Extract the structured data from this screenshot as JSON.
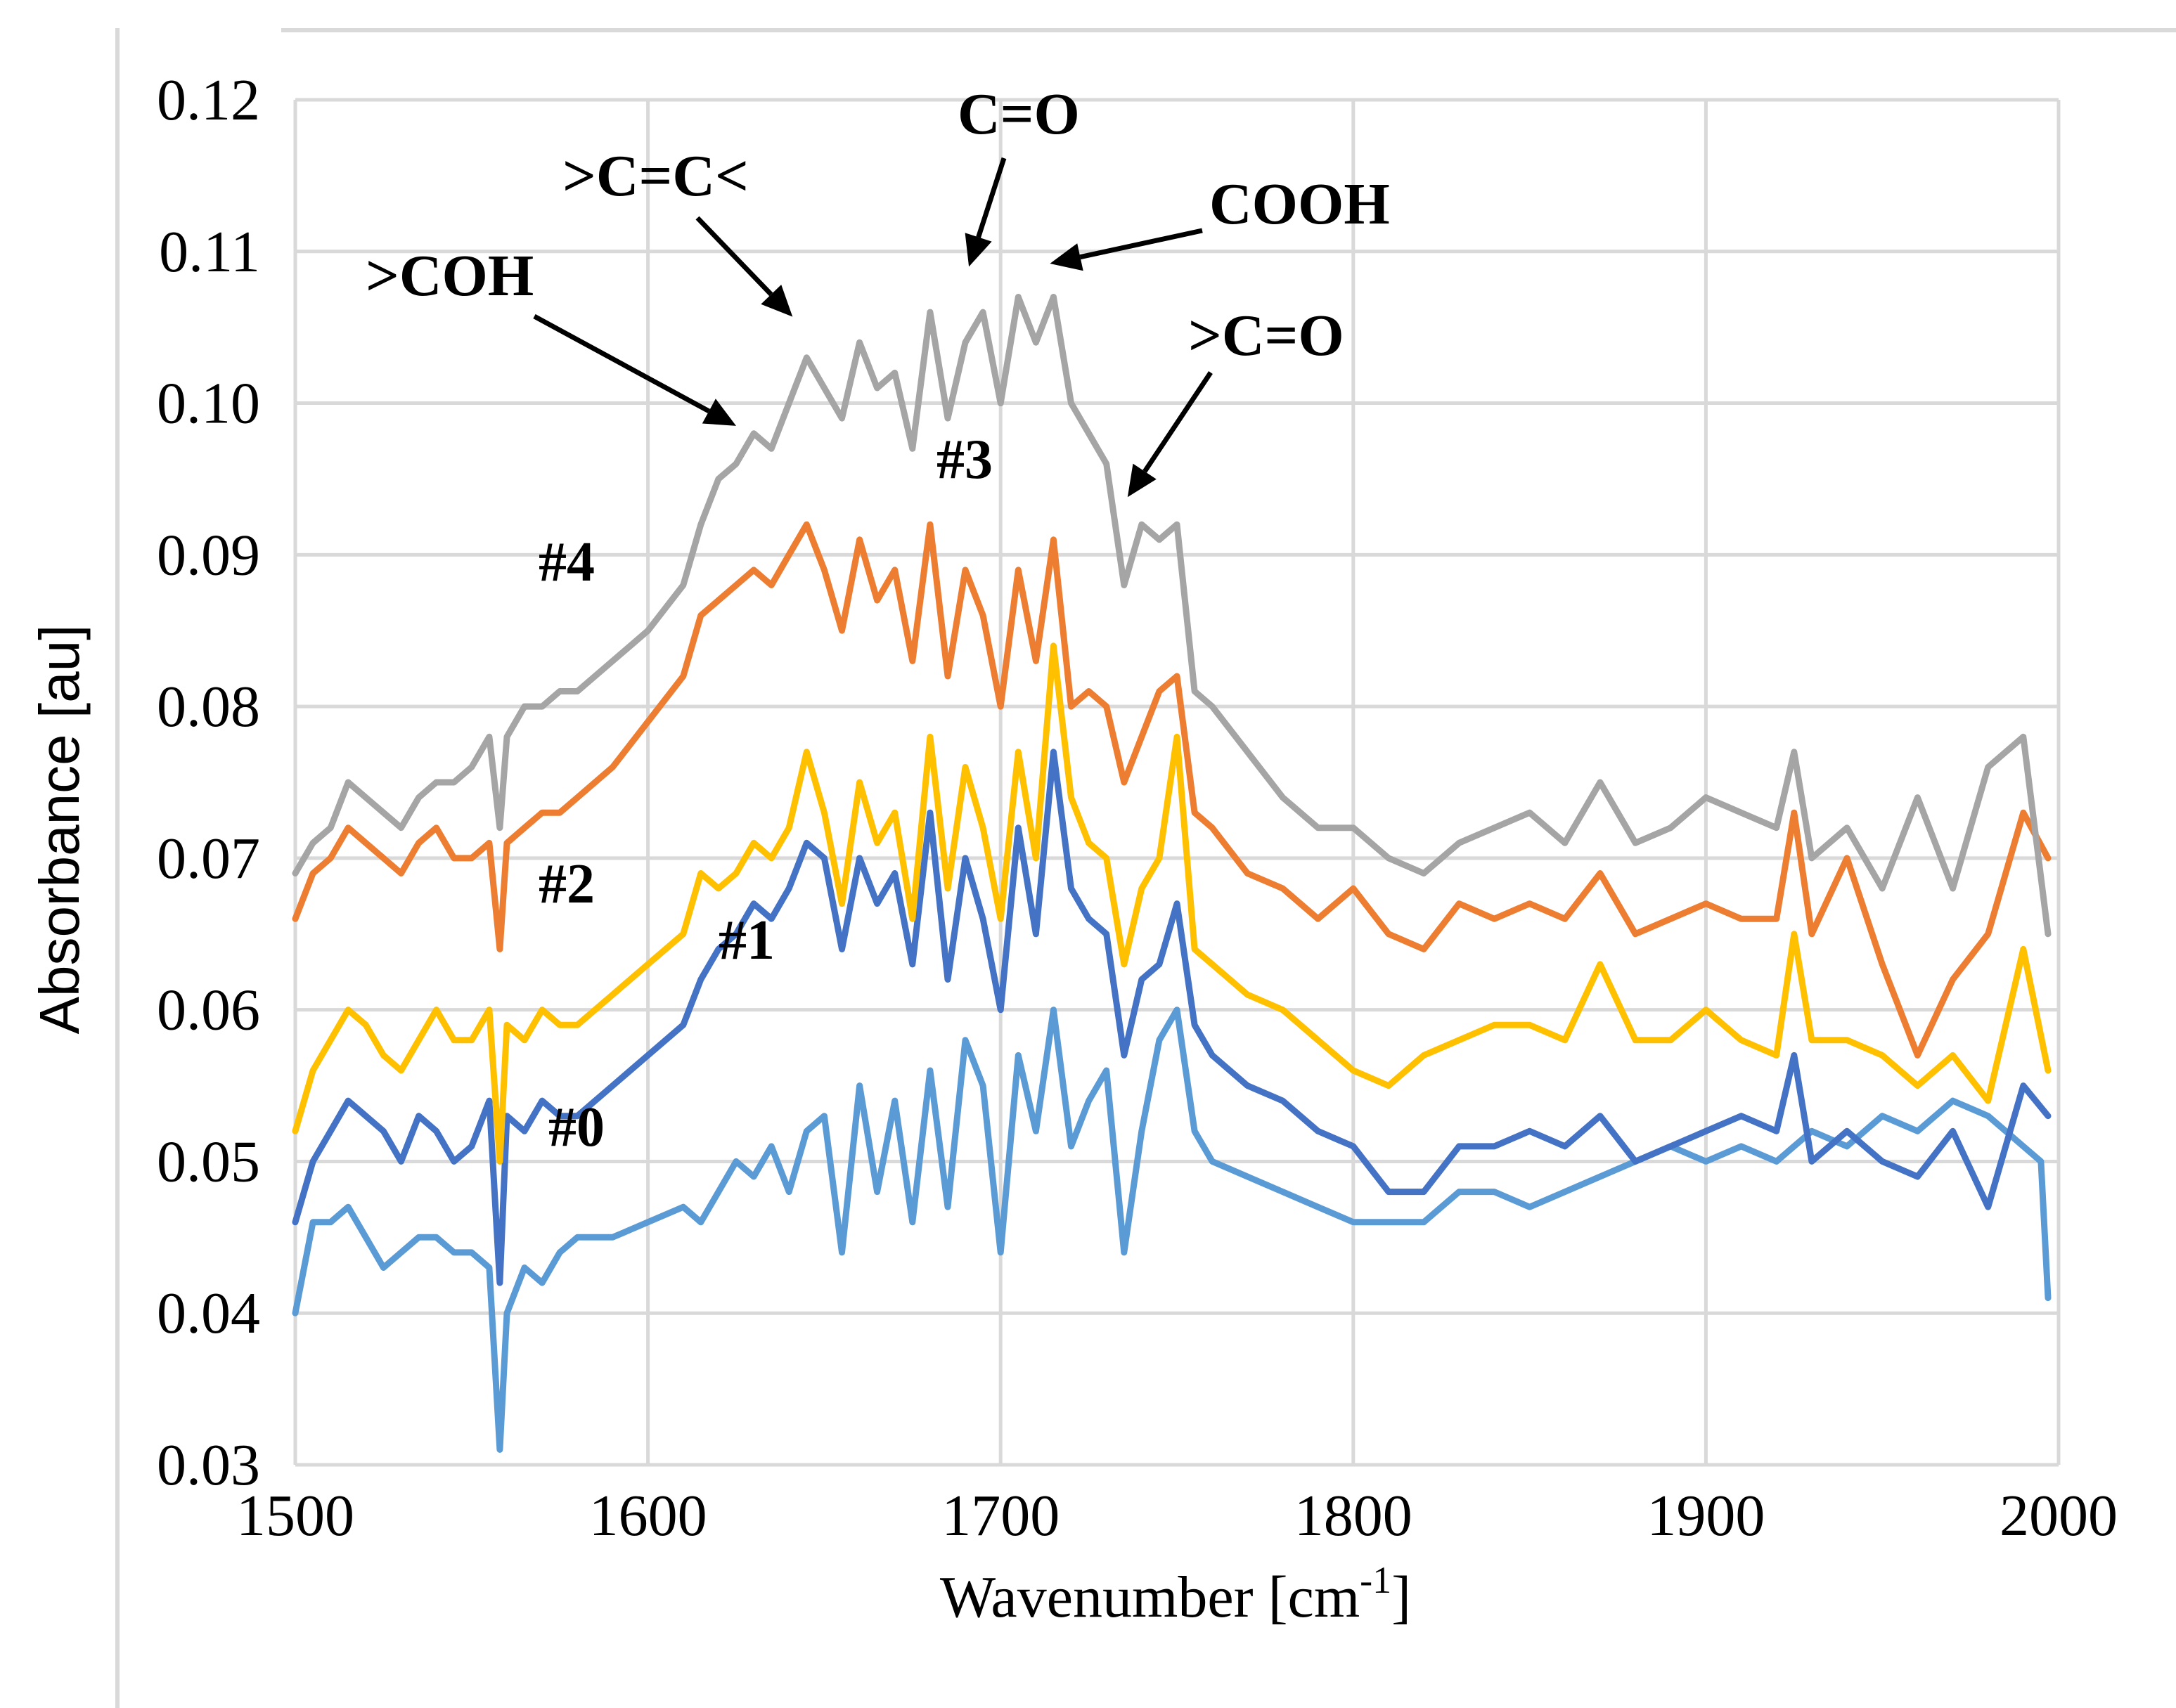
{
  "chart_data": {
    "type": "line",
    "title": "",
    "xlabel": "Wavenumber [cm",
    "xlabel_sup": "-1",
    "xlabel_end": "]",
    "ylabel": "Absorbance [au]",
    "xlim": [
      1500,
      2000
    ],
    "ylim": [
      0.03,
      0.12
    ],
    "grid": true,
    "x_ticks": [
      1500,
      1600,
      1700,
      1800,
      1900,
      2000
    ],
    "x_tick_labels": [
      "1500",
      "1600",
      "1700",
      "1800",
      "1900",
      "2000"
    ],
    "y_ticks": [
      0.03,
      0.04,
      0.05,
      0.06,
      0.07,
      0.08,
      0.09,
      0.1,
      0.11,
      0.12
    ],
    "y_tick_labels": [
      "0.03",
      "0.04",
      "0.05",
      "0.06",
      "0.07",
      "0.08",
      "0.09",
      "0.10",
      "0.11",
      "0.12"
    ],
    "series": [
      {
        "name": "#0",
        "color": "#5B9BD5",
        "x": [
          1500,
          1505,
          1510,
          1515,
          1520,
          1525,
          1530,
          1535,
          1540,
          1545,
          1550,
          1555,
          1558,
          1560,
          1565,
          1570,
          1575,
          1580,
          1590,
          1600,
          1610,
          1615,
          1620,
          1625,
          1630,
          1635,
          1640,
          1645,
          1650,
          1655,
          1660,
          1665,
          1670,
          1675,
          1680,
          1685,
          1690,
          1695,
          1700,
          1705,
          1710,
          1715,
          1720,
          1725,
          1730,
          1735,
          1740,
          1745,
          1750,
          1755,
          1760,
          1770,
          1780,
          1790,
          1800,
          1810,
          1820,
          1830,
          1840,
          1850,
          1860,
          1870,
          1880,
          1890,
          1900,
          1910,
          1920,
          1930,
          1940,
          1950,
          1960,
          1970,
          1980,
          1990,
          1995,
          1997
        ],
        "values": [
          0.04,
          0.046,
          0.046,
          0.047,
          0.045,
          0.043,
          0.044,
          0.045,
          0.045,
          0.044,
          0.044,
          0.043,
          0.031,
          0.04,
          0.043,
          0.042,
          0.044,
          0.045,
          0.045,
          0.046,
          0.047,
          0.046,
          0.048,
          0.05,
          0.049,
          0.051,
          0.048,
          0.052,
          0.053,
          0.044,
          0.055,
          0.048,
          0.054,
          0.046,
          0.056,
          0.047,
          0.058,
          0.055,
          0.044,
          0.057,
          0.052,
          0.06,
          0.051,
          0.054,
          0.056,
          0.044,
          0.052,
          0.058,
          0.06,
          0.052,
          0.05,
          0.049,
          0.048,
          0.047,
          0.046,
          0.046,
          0.046,
          0.048,
          0.048,
          0.047,
          0.048,
          0.049,
          0.05,
          0.051,
          0.05,
          0.051,
          0.05,
          0.052,
          0.051,
          0.053,
          0.052,
          0.054,
          0.053,
          0.051,
          0.05,
          0.041
        ]
      },
      {
        "name": "#1",
        "color": "#4472C4",
        "x": [
          1500,
          1505,
          1510,
          1515,
          1520,
          1525,
          1530,
          1535,
          1540,
          1545,
          1550,
          1555,
          1558,
          1560,
          1565,
          1570,
          1575,
          1580,
          1590,
          1600,
          1610,
          1615,
          1620,
          1625,
          1630,
          1635,
          1640,
          1645,
          1650,
          1655,
          1660,
          1665,
          1670,
          1675,
          1680,
          1685,
          1690,
          1695,
          1700,
          1705,
          1710,
          1715,
          1720,
          1725,
          1730,
          1735,
          1740,
          1745,
          1750,
          1755,
          1760,
          1770,
          1780,
          1790,
          1800,
          1810,
          1820,
          1830,
          1840,
          1850,
          1860,
          1870,
          1880,
          1890,
          1900,
          1910,
          1920,
          1925,
          1930,
          1940,
          1950,
          1960,
          1970,
          1980,
          1990,
          1997
        ],
        "values": [
          0.046,
          0.05,
          0.052,
          0.054,
          0.053,
          0.052,
          0.05,
          0.053,
          0.052,
          0.05,
          0.051,
          0.054,
          0.042,
          0.053,
          0.052,
          0.054,
          0.053,
          0.053,
          0.055,
          0.057,
          0.059,
          0.062,
          0.064,
          0.065,
          0.067,
          0.066,
          0.068,
          0.071,
          0.07,
          0.064,
          0.07,
          0.067,
          0.069,
          0.063,
          0.073,
          0.062,
          0.07,
          0.066,
          0.06,
          0.072,
          0.065,
          0.077,
          0.068,
          0.066,
          0.065,
          0.057,
          0.062,
          0.063,
          0.067,
          0.059,
          0.057,
          0.055,
          0.054,
          0.052,
          0.051,
          0.048,
          0.048,
          0.051,
          0.051,
          0.052,
          0.051,
          0.053,
          0.05,
          0.051,
          0.052,
          0.053,
          0.052,
          0.057,
          0.05,
          0.052,
          0.05,
          0.049,
          0.052,
          0.047,
          0.055,
          0.053
        ]
      },
      {
        "name": "#2",
        "color": "#FFC000",
        "x": [
          1500,
          1505,
          1510,
          1515,
          1520,
          1525,
          1530,
          1535,
          1540,
          1545,
          1550,
          1555,
          1558,
          1560,
          1565,
          1570,
          1575,
          1580,
          1590,
          1600,
          1610,
          1615,
          1620,
          1625,
          1630,
          1635,
          1640,
          1645,
          1650,
          1655,
          1660,
          1665,
          1670,
          1675,
          1680,
          1685,
          1690,
          1695,
          1700,
          1705,
          1710,
          1715,
          1720,
          1725,
          1730,
          1735,
          1740,
          1745,
          1750,
          1755,
          1760,
          1770,
          1780,
          1790,
          1800,
          1810,
          1820,
          1830,
          1840,
          1850,
          1860,
          1870,
          1880,
          1890,
          1900,
          1910,
          1920,
          1925,
          1930,
          1940,
          1950,
          1960,
          1970,
          1980,
          1990,
          1997
        ],
        "values": [
          0.052,
          0.056,
          0.058,
          0.06,
          0.059,
          0.057,
          0.056,
          0.058,
          0.06,
          0.058,
          0.058,
          0.06,
          0.05,
          0.059,
          0.058,
          0.06,
          0.059,
          0.059,
          0.061,
          0.063,
          0.065,
          0.069,
          0.068,
          0.069,
          0.071,
          0.07,
          0.072,
          0.077,
          0.073,
          0.067,
          0.075,
          0.071,
          0.073,
          0.066,
          0.078,
          0.068,
          0.076,
          0.072,
          0.066,
          0.077,
          0.07,
          0.084,
          0.074,
          0.071,
          0.07,
          0.063,
          0.068,
          0.07,
          0.078,
          0.064,
          0.063,
          0.061,
          0.06,
          0.058,
          0.056,
          0.055,
          0.057,
          0.058,
          0.059,
          0.059,
          0.058,
          0.063,
          0.058,
          0.058,
          0.06,
          0.058,
          0.057,
          0.065,
          0.058,
          0.058,
          0.057,
          0.055,
          0.057,
          0.054,
          0.064,
          0.056
        ]
      },
      {
        "name": "#3",
        "color": "#ED7D31",
        "x": [
          1500,
          1505,
          1510,
          1515,
          1520,
          1525,
          1530,
          1535,
          1540,
          1545,
          1550,
          1555,
          1558,
          1560,
          1565,
          1570,
          1575,
          1580,
          1590,
          1600,
          1610,
          1615,
          1620,
          1625,
          1630,
          1635,
          1640,
          1645,
          1650,
          1655,
          1660,
          1665,
          1670,
          1675,
          1680,
          1685,
          1690,
          1695,
          1700,
          1705,
          1710,
          1715,
          1720,
          1725,
          1730,
          1735,
          1740,
          1745,
          1750,
          1755,
          1760,
          1770,
          1780,
          1790,
          1800,
          1810,
          1820,
          1830,
          1840,
          1850,
          1860,
          1870,
          1880,
          1890,
          1900,
          1910,
          1920,
          1925,
          1930,
          1940,
          1950,
          1960,
          1970,
          1980,
          1990,
          1997
        ],
        "values": [
          0.066,
          0.069,
          0.07,
          0.072,
          0.071,
          0.07,
          0.069,
          0.071,
          0.072,
          0.07,
          0.07,
          0.071,
          0.064,
          0.071,
          0.072,
          0.073,
          0.073,
          0.074,
          0.076,
          0.079,
          0.082,
          0.086,
          0.087,
          0.088,
          0.089,
          0.088,
          0.09,
          0.092,
          0.089,
          0.085,
          0.091,
          0.087,
          0.089,
          0.083,
          0.092,
          0.082,
          0.089,
          0.086,
          0.08,
          0.089,
          0.083,
          0.091,
          0.08,
          0.081,
          0.08,
          0.075,
          0.078,
          0.081,
          0.082,
          0.073,
          0.072,
          0.069,
          0.068,
          0.066,
          0.068,
          0.065,
          0.064,
          0.067,
          0.066,
          0.067,
          0.066,
          0.069,
          0.065,
          0.066,
          0.067,
          0.066,
          0.066,
          0.073,
          0.065,
          0.07,
          0.063,
          0.057,
          0.062,
          0.065,
          0.073,
          0.07
        ]
      },
      {
        "name": "#4",
        "color": "#A5A5A5",
        "x": [
          1500,
          1505,
          1510,
          1515,
          1520,
          1525,
          1530,
          1535,
          1540,
          1545,
          1550,
          1555,
          1558,
          1560,
          1565,
          1570,
          1575,
          1580,
          1590,
          1600,
          1610,
          1615,
          1620,
          1625,
          1630,
          1635,
          1640,
          1645,
          1650,
          1655,
          1660,
          1665,
          1670,
          1675,
          1680,
          1685,
          1690,
          1695,
          1700,
          1705,
          1710,
          1715,
          1720,
          1725,
          1730,
          1735,
          1740,
          1745,
          1750,
          1755,
          1760,
          1770,
          1780,
          1790,
          1800,
          1810,
          1820,
          1830,
          1840,
          1850,
          1860,
          1870,
          1880,
          1890,
          1900,
          1910,
          1920,
          1925,
          1930,
          1940,
          1950,
          1960,
          1970,
          1980,
          1990,
          1997
        ],
        "values": [
          0.069,
          0.071,
          0.072,
          0.075,
          0.074,
          0.073,
          0.072,
          0.074,
          0.075,
          0.075,
          0.076,
          0.078,
          0.072,
          0.078,
          0.08,
          0.08,
          0.081,
          0.081,
          0.083,
          0.085,
          0.088,
          0.092,
          0.095,
          0.096,
          0.098,
          0.097,
          0.1,
          0.103,
          0.101,
          0.099,
          0.104,
          0.101,
          0.102,
          0.097,
          0.106,
          0.099,
          0.104,
          0.106,
          0.1,
          0.107,
          0.104,
          0.107,
          0.1,
          0.098,
          0.096,
          0.088,
          0.092,
          0.091,
          0.092,
          0.081,
          0.08,
          0.077,
          0.074,
          0.072,
          0.072,
          0.07,
          0.069,
          0.071,
          0.072,
          0.073,
          0.071,
          0.075,
          0.071,
          0.072,
          0.074,
          0.073,
          0.072,
          0.077,
          0.07,
          0.072,
          0.068,
          0.074,
          0.068,
          0.076,
          0.078,
          0.065
        ]
      }
    ],
    "annotations": [
      {
        "id": "coh",
        "text": ">COH",
        "x": 1625,
        "y": 0.0985
      },
      {
        "id": "cc",
        "text": ">C=C<",
        "x": 1641,
        "y": 0.1057
      },
      {
        "id": "co",
        "text": "C=O",
        "x": 1691,
        "y": 0.109
      },
      {
        "id": "cooh",
        "text": "COOH",
        "x": 1714,
        "y": 0.1092
      },
      {
        "id": "ketone",
        "text": ">C=O",
        "x": 1736,
        "y": 0.0938
      }
    ],
    "series_labels": [
      "#0",
      "#1",
      "#2",
      "#3",
      "#4"
    ]
  }
}
